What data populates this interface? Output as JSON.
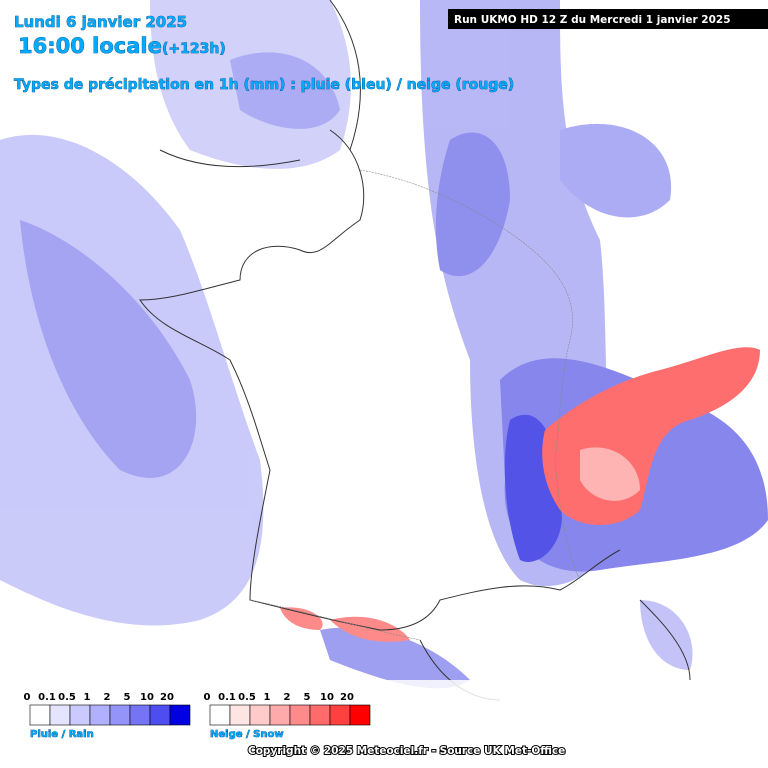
{
  "header": {
    "date": "Lundi 6 janvier 2025",
    "time": "16:00 locale",
    "lead": "(+123h)",
    "subtitle": "Types de précipitation en 1h (mm) : pluie (bleu) / neige (rouge)",
    "run": "Run UKMO HD 12 Z du Mercredi 1 janvier 2025"
  },
  "legend": {
    "rain": {
      "title": "Pluie / Rain",
      "labels": [
        "0",
        "0.1",
        "0.5",
        "1",
        "2",
        "5",
        "10",
        "20"
      ],
      "colors": [
        "#ffffff",
        "#e4e4ff",
        "#cacaff",
        "#b0b0ff",
        "#9494f8",
        "#7474f4",
        "#4d4df0",
        "#0000e0"
      ]
    },
    "snow": {
      "title": "Neige / Snow",
      "labels": [
        "0",
        "0.1",
        "0.5",
        "1",
        "2",
        "5",
        "10",
        "20"
      ],
      "colors": [
        "#ffffff",
        "#ffe4e4",
        "#ffcaca",
        "#ffaaaa",
        "#ff8a8a",
        "#ff6a6a",
        "#ff4040",
        "#ff0000"
      ]
    }
  },
  "footer": {
    "copyright": "Copyright © 2025 Meteociel.fr - Source UK Met-Office"
  }
}
